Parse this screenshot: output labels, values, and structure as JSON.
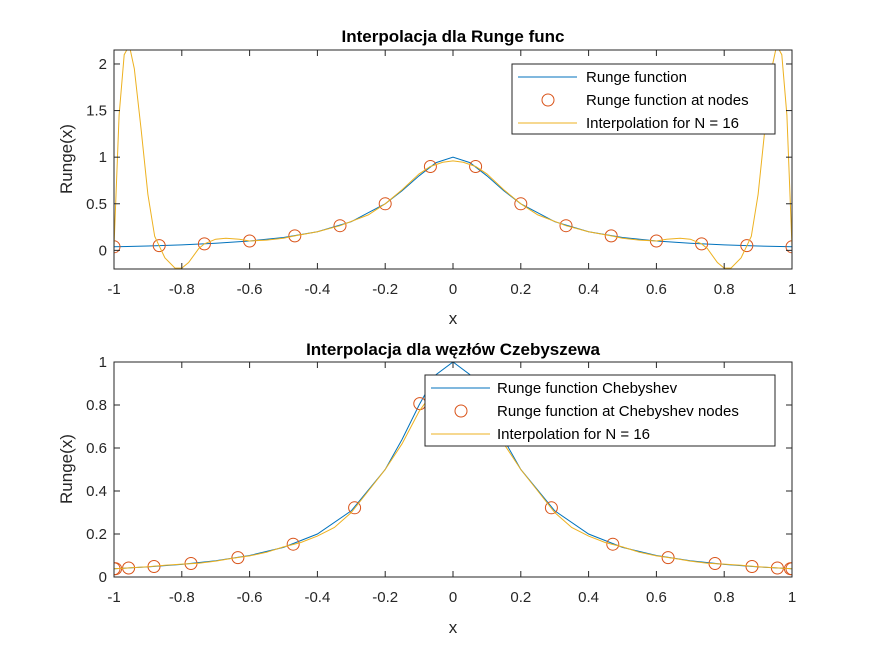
{
  "chart_data": [
    {
      "type": "line",
      "title": "Interpolacja dla Runge func",
      "xlabel": "x",
      "ylabel": "Runge(x)",
      "xlim": [
        -1,
        1
      ],
      "ylim": [
        -0.2,
        2.15
      ],
      "xticks": [
        -1,
        -0.8,
        -0.6,
        -0.4,
        -0.2,
        0,
        0.2,
        0.4,
        0.6,
        0.8,
        1
      ],
      "xtick_labels": [
        "-1",
        "-0.8",
        "-0.6",
        "-0.4",
        "-0.2",
        "0",
        "0.2",
        "0.4",
        "0.6",
        "0.8",
        "1"
      ],
      "yticks": [
        0,
        0.5,
        1,
        1.5,
        2
      ],
      "ytick_labels": [
        "0",
        "0.5",
        "1",
        "1.5",
        "2"
      ],
      "grid": false,
      "legend_position": "top-right",
      "series": [
        {
          "name": "Runge function",
          "color": "#0072BD",
          "style": "line",
          "x": [
            -1,
            -0.9,
            -0.8,
            -0.7,
            -0.6,
            -0.5,
            -0.4,
            -0.3,
            -0.2,
            -0.15,
            -0.1,
            -0.05,
            0,
            0.05,
            0.1,
            0.15,
            0.2,
            0.3,
            0.4,
            0.5,
            0.6,
            0.7,
            0.8,
            0.9,
            1
          ],
          "y": [
            0.0385,
            0.0471,
            0.0588,
            0.0755,
            0.1,
            0.1379,
            0.2,
            0.3077,
            0.5,
            0.64,
            0.8,
            0.9412,
            1,
            0.9412,
            0.8,
            0.64,
            0.5,
            0.3077,
            0.2,
            0.1379,
            0.1,
            0.0755,
            0.0588,
            0.0471,
            0.0385
          ]
        },
        {
          "name": "Runge function at nodes",
          "color": "#D95319",
          "style": "markers",
          "x": [
            -1,
            -0.8667,
            -0.7333,
            -0.6,
            -0.4667,
            -0.3333,
            -0.2,
            -0.0667,
            0.0667,
            0.2,
            0.3333,
            0.4667,
            0.6,
            0.7333,
            0.8667,
            1
          ],
          "y": [
            0.0385,
            0.0506,
            0.0692,
            0.1,
            0.1552,
            0.2647,
            0.5,
            0.9,
            0.9,
            0.5,
            0.2647,
            0.1552,
            0.1,
            0.0692,
            0.0506,
            0.0385
          ]
        },
        {
          "name": "Interpolation for N = 16",
          "color": "#EDB120",
          "style": "line",
          "x": [
            -1,
            -0.985,
            -0.97,
            -0.955,
            -0.94,
            -0.92,
            -0.9,
            -0.88,
            -0.867,
            -0.85,
            -0.82,
            -0.8,
            -0.78,
            -0.75,
            -0.733,
            -0.7,
            -0.67,
            -0.63,
            -0.6,
            -0.55,
            -0.5,
            -0.467,
            -0.4,
            -0.333,
            -0.25,
            -0.2,
            -0.15,
            -0.1,
            -0.067,
            -0.03,
            0,
            0.03,
            0.067,
            0.1,
            0.15,
            0.2,
            0.25,
            0.333,
            0.4,
            0.467,
            0.5,
            0.55,
            0.6,
            0.63,
            0.67,
            0.7,
            0.733,
            0.75,
            0.78,
            0.8,
            0.82,
            0.85,
            0.867,
            0.88,
            0.9,
            0.92,
            0.94,
            0.955,
            0.97,
            0.985,
            1
          ],
          "y": [
            0.04,
            1.45,
            2.1,
            2.2,
            1.95,
            1.3,
            0.6,
            0.15,
            0.05,
            -0.08,
            -0.19,
            -0.19,
            -0.13,
            0.02,
            0.07,
            0.12,
            0.13,
            0.12,
            0.1,
            0.11,
            0.13,
            0.155,
            0.2,
            0.265,
            0.38,
            0.5,
            0.65,
            0.82,
            0.9,
            0.945,
            0.96,
            0.945,
            0.9,
            0.82,
            0.65,
            0.5,
            0.38,
            0.265,
            0.2,
            0.155,
            0.13,
            0.11,
            0.1,
            0.12,
            0.13,
            0.12,
            0.07,
            0.02,
            -0.13,
            -0.19,
            -0.19,
            -0.08,
            0.05,
            0.15,
            0.6,
            1.3,
            1.95,
            2.2,
            2.1,
            1.45,
            0.04
          ]
        }
      ]
    },
    {
      "type": "line",
      "title": "Interpolacja dla węzłów Czebyszewa",
      "xlabel": "x",
      "ylabel": "Runge(x)",
      "xlim": [
        -1,
        1
      ],
      "ylim": [
        0,
        1
      ],
      "xticks": [
        -1,
        -0.8,
        -0.6,
        -0.4,
        -0.2,
        0,
        0.2,
        0.4,
        0.6,
        0.8,
        1
      ],
      "xtick_labels": [
        "-1",
        "-0.8",
        "-0.6",
        "-0.4",
        "-0.2",
        "0",
        "0.2",
        "0.4",
        "0.6",
        "0.8",
        "1"
      ],
      "yticks": [
        0,
        0.2,
        0.4,
        0.6,
        0.8,
        1
      ],
      "ytick_labels": [
        "0",
        "0.2",
        "0.4",
        "0.6",
        "0.8",
        "1"
      ],
      "grid": false,
      "legend_position": "top-right",
      "series": [
        {
          "name": "Runge function Chebyshev",
          "color": "#0072BD",
          "style": "line",
          "x": [
            -1,
            -0.9,
            -0.8,
            -0.7,
            -0.6,
            -0.5,
            -0.4,
            -0.3,
            -0.2,
            -0.15,
            -0.1,
            -0.05,
            0,
            0.05,
            0.1,
            0.15,
            0.2,
            0.3,
            0.4,
            0.5,
            0.6,
            0.7,
            0.8,
            0.9,
            1
          ],
          "y": [
            0.0385,
            0.0471,
            0.0588,
            0.0755,
            0.1,
            0.1379,
            0.2,
            0.3077,
            0.5,
            0.64,
            0.8,
            0.9412,
            1,
            0.9412,
            0.8,
            0.64,
            0.5,
            0.3077,
            0.2,
            0.1379,
            0.1,
            0.0755,
            0.0588,
            0.0471,
            0.0385
          ]
        },
        {
          "name": "Runge function at Chebyshev nodes",
          "color": "#D95319",
          "style": "markers",
          "x": [
            -0.9952,
            -0.9569,
            -0.8819,
            -0.773,
            -0.6344,
            -0.4714,
            -0.2903,
            -0.098,
            0.098,
            0.2903,
            0.4714,
            0.6344,
            0.773,
            0.8819,
            0.9569,
            0.9952,
            -1,
            1
          ],
          "y": [
            0.0388,
            0.0419,
            0.0489,
            0.0627,
            0.0904,
            0.1525,
            0.3218,
            0.8064,
            0.8064,
            0.3218,
            0.1525,
            0.0904,
            0.0627,
            0.0489,
            0.0419,
            0.0388,
            0.0385,
            0.0385
          ]
        },
        {
          "name": "Interpolation for N = 16",
          "color": "#EDB120",
          "style": "line",
          "x": [
            -1,
            -0.95,
            -0.9,
            -0.85,
            -0.8,
            -0.75,
            -0.7,
            -0.65,
            -0.6,
            -0.55,
            -0.5,
            -0.45,
            -0.4,
            -0.35,
            -0.3,
            -0.25,
            -0.2,
            -0.15,
            -0.1,
            -0.05,
            0,
            0.05,
            0.1,
            0.15,
            0.2,
            0.25,
            0.3,
            0.35,
            0.4,
            0.45,
            0.5,
            0.55,
            0.6,
            0.65,
            0.7,
            0.75,
            0.8,
            0.85,
            0.9,
            0.95,
            1
          ],
          "y": [
            0.038,
            0.043,
            0.048,
            0.055,
            0.06,
            0.064,
            0.074,
            0.087,
            0.098,
            0.115,
            0.14,
            0.16,
            0.19,
            0.23,
            0.3,
            0.4,
            0.5,
            0.62,
            0.77,
            0.88,
            0.92,
            0.88,
            0.77,
            0.62,
            0.5,
            0.4,
            0.3,
            0.23,
            0.19,
            0.16,
            0.14,
            0.115,
            0.098,
            0.087,
            0.074,
            0.064,
            0.06,
            0.055,
            0.048,
            0.043,
            0.038
          ]
        }
      ]
    }
  ]
}
